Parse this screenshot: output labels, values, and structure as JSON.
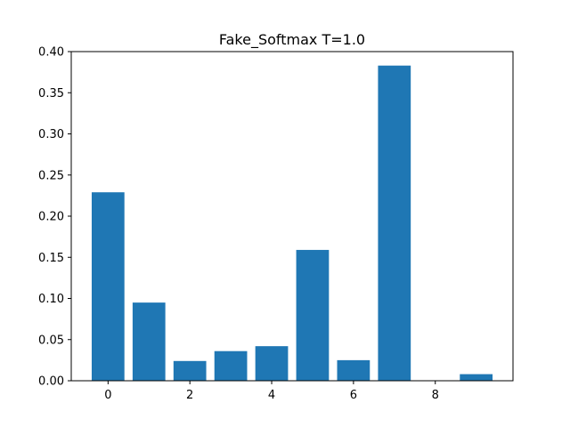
{
  "chart_data": {
    "type": "bar",
    "title": "Fake_Softmax T=1.0",
    "xlabel": "",
    "ylabel": "",
    "x": [
      0,
      1,
      2,
      3,
      4,
      5,
      6,
      7,
      8,
      9
    ],
    "values": [
      0.229,
      0.095,
      0.024,
      0.036,
      0.042,
      0.159,
      0.025,
      0.383,
      0.0,
      0.008
    ],
    "xlim": [
      -0.9,
      9.9
    ],
    "ylim": [
      0,
      0.4
    ],
    "xticks": [
      0,
      2,
      4,
      6,
      8
    ],
    "xtick_labels": [
      "0",
      "2",
      "4",
      "6",
      "8"
    ],
    "yticks": [
      0,
      0.05,
      0.1,
      0.15,
      0.2,
      0.25,
      0.3,
      0.35,
      0.4
    ],
    "ytick_labels": [
      "0.00",
      "0.05",
      "0.10",
      "0.15",
      "0.20",
      "0.25",
      "0.30",
      "0.35",
      "0.40"
    ],
    "bar_color": "#1f77b4",
    "grid": false,
    "legend": "none"
  }
}
